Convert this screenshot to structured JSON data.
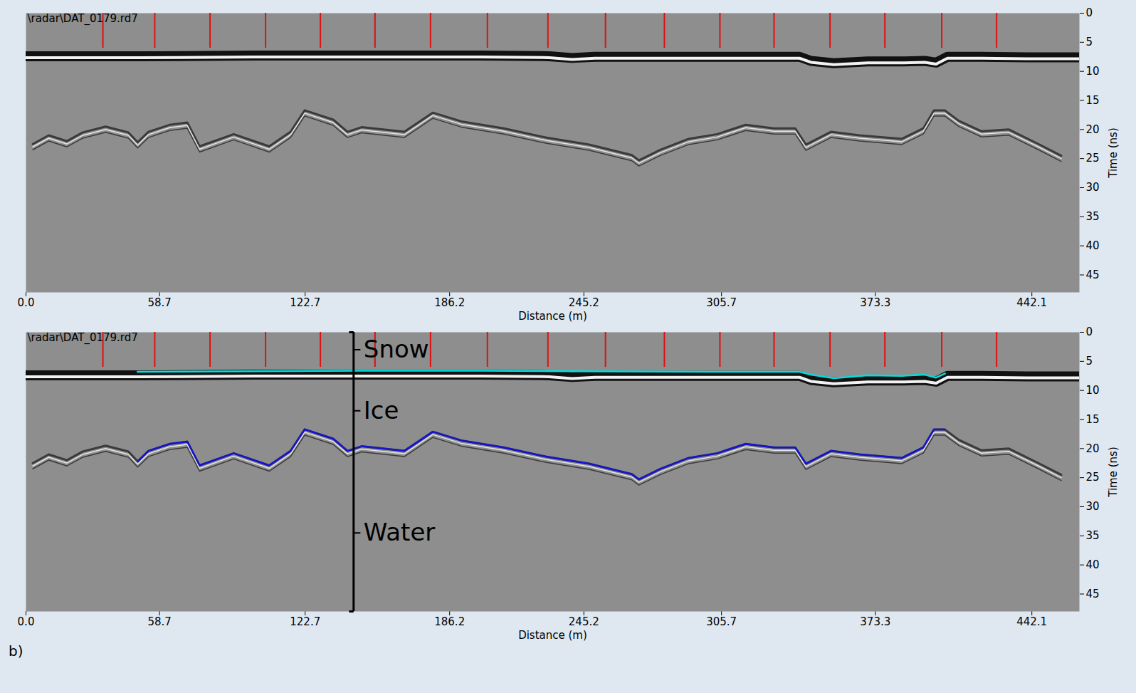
{
  "chart_data": [
    {
      "type": "line",
      "header": "\\radar\\DAT_0179.rd7",
      "xlabel": "Distance (m)",
      "ylabel": "Time (ns)",
      "xlim": [
        0,
        463
      ],
      "ylim": [
        0,
        48
      ],
      "xticks": [
        {
          "value": 0,
          "label": "0.0"
        },
        58.7,
        122.7,
        186.2,
        245.2,
        305.7,
        373.3,
        442.1
      ],
      "yticks": [
        0,
        5,
        10,
        15,
        20,
        25,
        30,
        35,
        40,
        45
      ],
      "markers": [
        33.8,
        56.6,
        80.9,
        105.3,
        129.4,
        153.4,
        177.8,
        202.8,
        229.4,
        254.7,
        280.6,
        305,
        328.8,
        353.4,
        377.5,
        402.5,
        426.6
      ],
      "marker_span": [
        0,
        6
      ],
      "series": [
        {
          "type": "band",
          "color": "#111111",
          "x": [
            0,
            50,
            100,
            150,
            200,
            230,
            240,
            250,
            300,
            340,
            345,
            355,
            370,
            385,
            395,
            400,
            405,
            420,
            440,
            463
          ],
          "values": [
            7.4,
            7.4,
            7.3,
            7.3,
            7.3,
            7.4,
            7.7,
            7.5,
            7.5,
            7.5,
            8.2,
            8.6,
            8.3,
            8.3,
            8.2,
            8.5,
            7.5,
            7.5,
            7.6,
            7.6
          ]
        },
        {
          "type": "reflection",
          "color": "#3a3a3a",
          "x": [
            3,
            10,
            18,
            25,
            35,
            45,
            49.1,
            53.8,
            63.1,
            70.9,
            76.3,
            91.3,
            106.9,
            116.3,
            122.5,
            135,
            141.3,
            147.5,
            166.3,
            178.8,
            191.3,
            210,
            228.8,
            247.5,
            266.3,
            269.4,
            278.8,
            291.3,
            303.8,
            316.3,
            328.8,
            338.1,
            342.8,
            353.8,
            366.3,
            385,
            394.4,
            399.1,
            403.8,
            410,
            420,
            432,
            445,
            455
          ],
          "values": [
            22.5,
            21,
            22,
            20.5,
            19.5,
            20.5,
            22.2,
            20.4,
            19.2,
            18.8,
            22.9,
            20.8,
            22.9,
            20.4,
            16.7,
            18.3,
            20.4,
            19.6,
            20.4,
            17.1,
            18.6,
            19.8,
            21.4,
            22.6,
            24.4,
            25.3,
            23.5,
            21.6,
            20.8,
            19.2,
            19.8,
            19.8,
            22.6,
            20.4,
            21,
            21.6,
            19.8,
            16.7,
            16.7,
            18.5,
            20.3,
            20,
            22.5,
            24.5
          ]
        }
      ]
    },
    {
      "type": "line",
      "header": "\\radar\\DAT_0179.rd7",
      "panel": "b)",
      "xlabel": "Distance (m)",
      "ylabel": "Time (ns)",
      "xlim": [
        0,
        463
      ],
      "ylim": [
        0,
        48
      ],
      "xticks": [
        {
          "value": 0,
          "label": "0.0"
        },
        58.7,
        122.7,
        186.2,
        245.2,
        305.7,
        373.3,
        442.1
      ],
      "yticks": [
        0,
        5,
        10,
        15,
        20,
        25,
        30,
        35,
        40,
        45
      ],
      "markers": [
        33.8,
        56.6,
        80.9,
        105.3,
        129.4,
        153.4,
        177.8,
        202.8,
        229.4,
        254.7,
        280.6,
        305,
        328.8,
        353.4,
        377.5,
        402.5,
        426.6
      ],
      "marker_span": [
        0,
        6
      ],
      "series": [
        {
          "type": "band",
          "color": "#111111",
          "x": [
            0,
            50,
            100,
            150,
            200,
            230,
            240,
            250,
            300,
            340,
            345,
            355,
            370,
            385,
            395,
            400,
            405,
            420,
            440,
            463
          ],
          "values": [
            7.4,
            7.4,
            7.3,
            7.3,
            7.3,
            7.4,
            7.7,
            7.5,
            7.5,
            7.5,
            8.2,
            8.6,
            8.3,
            8.3,
            8.2,
            8.5,
            7.5,
            7.5,
            7.6,
            7.6
          ]
        },
        {
          "type": "reflection",
          "color": "#3a3a3a",
          "x": [
            3,
            10,
            18,
            25,
            35,
            45,
            49.1,
            53.8,
            63.1,
            70.9,
            76.3,
            91.3,
            106.9,
            116.3,
            122.5,
            135,
            141.3,
            147.5,
            166.3,
            178.8,
            191.3,
            210,
            228.8,
            247.5,
            266.3,
            269.4,
            278.8,
            291.3,
            303.8,
            316.3,
            328.8,
            338.1,
            342.8,
            353.8,
            366.3,
            385,
            394.4,
            399.1,
            403.8,
            410,
            420,
            432,
            445,
            455
          ],
          "values": [
            22.5,
            21,
            22,
            20.5,
            19.5,
            20.5,
            22.2,
            20.4,
            19.2,
            18.8,
            22.9,
            20.8,
            22.9,
            20.4,
            16.7,
            18.3,
            20.4,
            19.6,
            20.4,
            17.1,
            18.6,
            19.8,
            21.4,
            22.6,
            24.4,
            25.3,
            23.5,
            21.6,
            20.8,
            19.2,
            19.8,
            19.8,
            22.6,
            20.4,
            21,
            21.6,
            19.8,
            16.7,
            16.7,
            18.5,
            20.3,
            20,
            22.5,
            24.5
          ]
        },
        {
          "type": "line",
          "color": "#00e0e0",
          "x": [
            49,
            100,
            150,
            200,
            240,
            300,
            340,
            345,
            355,
            370,
            385,
            395,
            400,
            404
          ],
          "values": [
            6.8,
            6.7,
            6.6,
            6.6,
            6.7,
            6.8,
            6.8,
            7.3,
            7.9,
            7.4,
            7.5,
            7.3,
            7.8,
            7.1
          ]
        },
        {
          "type": "line",
          "color": "#1414d2",
          "x": [
            49.1,
            53.8,
            63.1,
            70.9,
            76.3,
            91.3,
            106.9,
            116.3,
            122.5,
            135,
            141.3,
            147.5,
            166.3,
            178.8,
            191.3,
            210,
            228.8,
            247.5,
            266.3,
            269.4,
            278.8,
            291.3,
            303.8,
            316.3,
            328.8,
            338.1,
            342.8,
            353.8,
            366.3,
            385,
            394.4,
            399.1,
            403.8
          ],
          "values": [
            22.2,
            20.4,
            19.2,
            18.8,
            22.9,
            20.8,
            22.9,
            20.4,
            16.7,
            18.3,
            20.4,
            19.6,
            20.4,
            17.1,
            18.6,
            19.8,
            21.4,
            22.6,
            24.4,
            25.3,
            23.5,
            21.6,
            20.8,
            19.2,
            19.8,
            19.8,
            22.6,
            20.4,
            21,
            21.6,
            19.8,
            16.7,
            16.7
          ]
        }
      ],
      "bracket": {
        "x": 144,
        "y": [
          0,
          48
        ]
      },
      "annotations": [
        {
          "text": "Snow",
          "x": 144,
          "y": 3
        },
        {
          "text": "Ice",
          "x": 144,
          "y": 13.5
        },
        {
          "text": "Water",
          "x": 144,
          "y": 34.5
        }
      ]
    }
  ]
}
